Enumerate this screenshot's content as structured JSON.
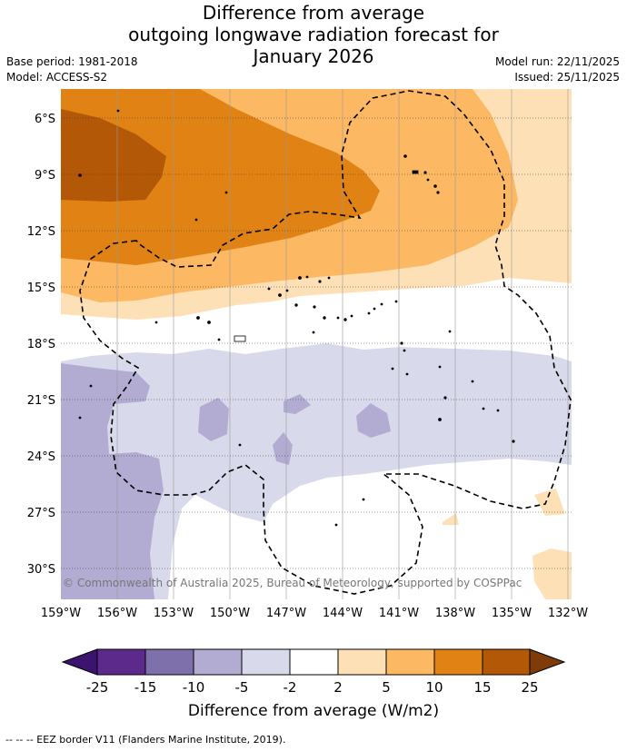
{
  "title": {
    "line1": "Difference from average",
    "line2": "outgoing longwave radiation forecast for",
    "line3": "January 2026"
  },
  "meta": {
    "base_period": "Base period: 1981-2018",
    "model": "Model: ACCESS-S2",
    "model_run": "Model run: 22/11/2025",
    "issued": "Issued: 25/11/2025"
  },
  "map": {
    "lat_labels": [
      "6°S",
      "9°S",
      "12°S",
      "15°S",
      "18°S",
      "21°S",
      "24°S",
      "27°S",
      "30°S"
    ],
    "lon_labels": [
      "159°W",
      "156°W",
      "153°W",
      "150°W",
      "147°W",
      "144°W",
      "141°W",
      "138°W",
      "135°W",
      "132°W"
    ],
    "copyright": "© Commonwealth of Australia 2025, Bureau of Meteorology, supported by COSPPac"
  },
  "colorbar": {
    "ticks": [
      "-25",
      "-15",
      "-10",
      "-5",
      "-2",
      "2",
      "5",
      "10",
      "15",
      "25"
    ],
    "colors": [
      "#3c1470",
      "#5b2a8a",
      "#7e70ab",
      "#b2abd2",
      "#d8daeb",
      "#ffffff",
      "#fee0b6",
      "#fdb863",
      "#e08214",
      "#b35806",
      "#7f3b08"
    ],
    "label": "Difference from average (W/m2)"
  },
  "footnote": "--  --  -- EEZ border V11 (Flanders Marine Institute, 2019)."
}
